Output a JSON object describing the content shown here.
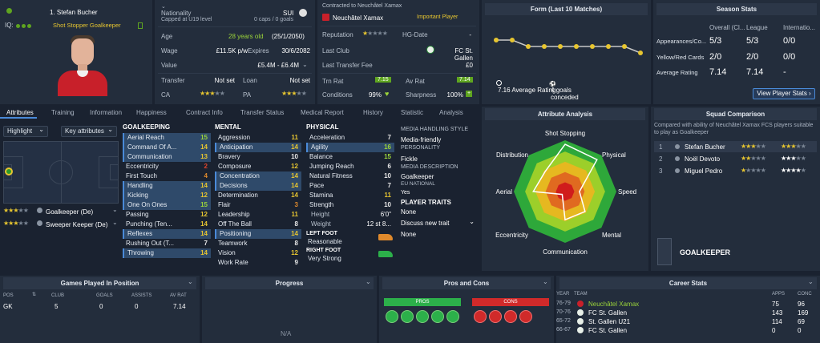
{
  "player": {
    "name": "1. Stefan Bucher",
    "iq_label": "IQ:",
    "roles": "Shot Stopper Goalkeeper"
  },
  "bio": {
    "nationality_label": "Nationality",
    "nationality": "SUI",
    "caps_note": "Capped at U19 level",
    "caps": "0 caps / 0 goals",
    "age_label": "Age",
    "age": "28 years old",
    "dob": "(25/1/2050)",
    "wage_label": "Wage",
    "wage": "£11.5K p/w",
    "expires_label": "Expires",
    "expires": "30/6/2082",
    "value_label": "Value",
    "value": "£5.4M - £6.4M",
    "transfer_label": "Transfer",
    "transfer": "Not set",
    "loan_label": "Loan",
    "loan": "Not set",
    "ca_label": "CA",
    "pa_label": "PA"
  },
  "contract": {
    "contracted_to": "Contracted to Neuchâtel Xamax",
    "club": "Neuchâtel Xamax",
    "status": "Important Player",
    "reputation_label": "Reputation",
    "hg_label": "HG-Date",
    "hg_value": "-",
    "last_club_label": "Last Club",
    "last_club": "FC St. Gallen",
    "last_fee_label": "Last Transfer Fee",
    "last_fee": "£0",
    "trn_label": "Trn Rat",
    "trn_value": "7.15",
    "av_label": "Av Rat",
    "av_value": "7.14",
    "conditions_label": "Conditions",
    "conditions": "99%",
    "sharpness_label": "Sharpness",
    "sharpness": "100%"
  },
  "form": {
    "title": "Form (Last 10 Matches)",
    "avg_value": "7.16",
    "avg_label": "Average Rating",
    "goals_value": "4",
    "goals_label": "goals conceded",
    "points": [
      7.3,
      7.3,
      7.2,
      7.2,
      7.2,
      7.2,
      7.2,
      7.2,
      7.2,
      7.1
    ]
  },
  "season": {
    "title": "Season Stats",
    "cols": [
      "Overall (Cl...",
      "League",
      "Internatio..."
    ],
    "rows": [
      {
        "label": "Appearances/Co...",
        "v": [
          "5/3",
          "5/3",
          "0/0"
        ]
      },
      {
        "label": "Yellow/Red Cards",
        "v": [
          "2/0",
          "2/0",
          "0/0"
        ]
      },
      {
        "label": "Average Rating",
        "v": [
          "7.14",
          "7.14",
          "-"
        ]
      }
    ],
    "button": "View Player Stats"
  },
  "tabs": [
    "Attributes",
    "Training",
    "Information",
    "Happiness",
    "Contract Info",
    "Transfer Status",
    "Medical Report",
    "History",
    "Statistic",
    "Analysis"
  ],
  "pitch": {
    "highlight": "Highlight",
    "key_attr": "Key attributes",
    "roles": [
      {
        "name": "Goalkeeper (De)"
      },
      {
        "name": "Sweeper Keeper (De)"
      }
    ]
  },
  "goalkeeping": {
    "title": "GOALKEEPING",
    "items": [
      [
        "Aerial Reach",
        "15"
      ],
      [
        "Command Of A...",
        "14"
      ],
      [
        "Communication",
        "13"
      ],
      [
        "Eccentricity",
        "2"
      ],
      [
        "First Touch",
        "4"
      ],
      [
        "Handling",
        "14"
      ],
      [
        "Kicking",
        "12"
      ],
      [
        "One On Ones",
        "15"
      ],
      [
        "Passing",
        "12"
      ],
      [
        "Punching (Ten...",
        "14"
      ],
      [
        "Reflexes",
        "14"
      ],
      [
        "Rushing Out (T...",
        "7"
      ],
      [
        "Throwing",
        "14"
      ]
    ]
  },
  "mental": {
    "title": "MENTAL",
    "items": [
      [
        "Aggression",
        "11"
      ],
      [
        "Anticipation",
        "14"
      ],
      [
        "Bravery",
        "10"
      ],
      [
        "Composure",
        "12"
      ],
      [
        "Concentration",
        "14"
      ],
      [
        "Decisions",
        "14"
      ],
      [
        "Determination",
        "14"
      ],
      [
        "Flair",
        "3"
      ],
      [
        "Leadership",
        "11"
      ],
      [
        "Off The Ball",
        "8"
      ],
      [
        "Positioning",
        "14"
      ],
      [
        "Teamwork",
        "8"
      ],
      [
        "Vision",
        "12"
      ],
      [
        "Work Rate",
        "9"
      ]
    ]
  },
  "physical": {
    "title": "PHYSICAL",
    "items": [
      [
        "Acceleration",
        "7"
      ],
      [
        "Agility",
        "16"
      ],
      [
        "Balance",
        "15"
      ],
      [
        "Jumping Reach",
        "6"
      ],
      [
        "Natural Fitness",
        "10"
      ],
      [
        "Pace",
        "7"
      ],
      [
        "Stamina",
        "11"
      ],
      [
        "Strength",
        "10"
      ]
    ],
    "height_label": "Height",
    "height": "6'0\"",
    "weight_label": "Weight",
    "weight": "12 st 8...",
    "left_foot_label": "LEFT FOOT",
    "left_foot": "Reasonable",
    "right_foot_label": "RIGHT FOOT",
    "right_foot": "Very Strong"
  },
  "media": {
    "style_label": "MEDIA HANDLING STYLE",
    "style": "Media-friendly",
    "personality_label": "PERSONALITY",
    "personality": "Fickle",
    "desc_label": "MEDIA DESCRIPTION",
    "desc": "Goalkeeper",
    "eu_label": "EU NATIONAL",
    "eu": "Yes",
    "traits_label": "PLAYER TRAITS",
    "traits_none": "None",
    "discuss": "Discuss new trait",
    "traits_value": "None"
  },
  "analysis": {
    "title": "Attribute Analysis",
    "axes": [
      "Shot Stopping",
      "Physical",
      "Speed",
      "Mental",
      "Communication",
      "Eccentricity",
      "Aerial",
      "Distribution"
    ]
  },
  "squad": {
    "title": "Squad Comparison",
    "note": "Compared with ability of Neuchâtel Xamax FCS players suitable to play as Goalkeeper",
    "players": [
      {
        "n": "1",
        "name": "Stefan Bucher"
      },
      {
        "n": "2",
        "name": "Noël Devoto"
      },
      {
        "n": "3",
        "name": "Miguel Pedro"
      }
    ],
    "position": "GOALKEEPER"
  },
  "games": {
    "title": "Games Played In Position",
    "cols": [
      "POS",
      "CLUB",
      "GOALS",
      "ASSISTS",
      "AV RAT"
    ],
    "row": [
      "GK",
      "5",
      "0",
      "0",
      "7.14"
    ]
  },
  "progress": {
    "title": "Progress",
    "na": "N/A"
  },
  "pros": {
    "title": "Pros and Cons",
    "pros": "PROS",
    "cons": "CONS"
  },
  "career": {
    "title": "Career Stats",
    "cols": [
      "YEAR",
      "TEAM",
      "APPS",
      "CONC"
    ],
    "rows": [
      [
        "76-79",
        "Neuchâtel Xamax",
        "75",
        "96"
      ],
      [
        "70-76",
        "FC St. Gallen",
        "143",
        "169"
      ],
      [
        "65-72",
        "St. Gallen U21",
        "114",
        "69"
      ],
      [
        "66-67",
        "FC St. Gallen",
        "0",
        "0"
      ]
    ]
  }
}
